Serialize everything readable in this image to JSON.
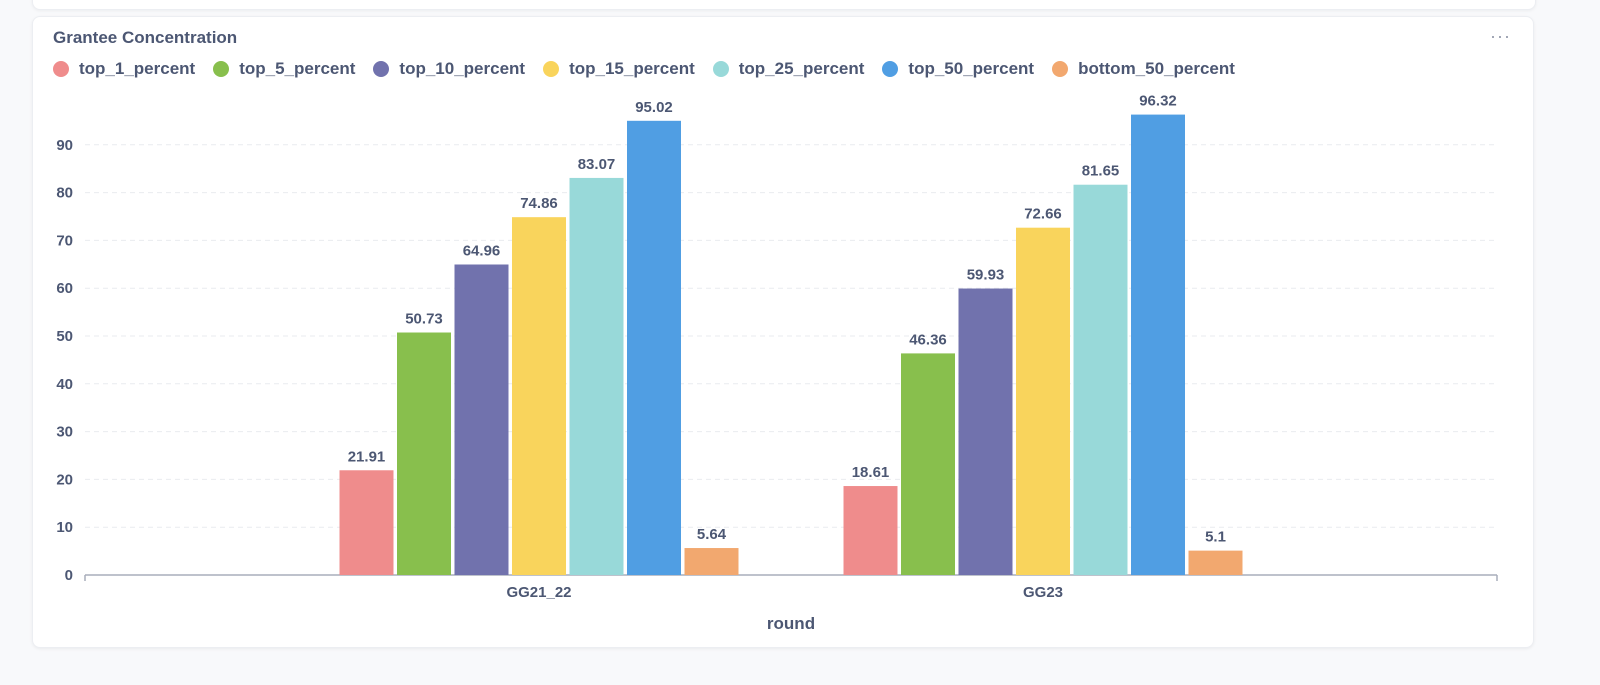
{
  "card": {
    "title": "Grantee Concentration",
    "menu_label": "···"
  },
  "chart_data": {
    "type": "bar",
    "title": "Grantee Concentration",
    "xlabel": "round",
    "ylabel": "",
    "categories": [
      "GG21_22",
      "GG23"
    ],
    "ylim": [
      0,
      100
    ],
    "yticks": [
      0,
      10,
      20,
      30,
      40,
      50,
      60,
      70,
      80,
      90
    ],
    "grid": true,
    "legend_position": "top-left",
    "series": [
      {
        "name": "top_1_percent",
        "color": "#ef8c8c",
        "values": [
          21.91,
          18.61
        ]
      },
      {
        "name": "top_5_percent",
        "color": "#88bf4d",
        "values": [
          50.73,
          46.36
        ]
      },
      {
        "name": "top_10_percent",
        "color": "#7172ad",
        "values": [
          64.96,
          59.93
        ]
      },
      {
        "name": "top_15_percent",
        "color": "#f9d45c",
        "values": [
          74.86,
          72.66
        ]
      },
      {
        "name": "top_25_percent",
        "color": "#98d9d9",
        "values": [
          83.07,
          81.65
        ]
      },
      {
        "name": "top_50_percent",
        "color": "#509ee3",
        "values": [
          95.02,
          96.32
        ]
      },
      {
        "name": "bottom_50_percent",
        "color": "#f2a86f",
        "values": [
          5.64,
          5.1
        ]
      }
    ]
  }
}
